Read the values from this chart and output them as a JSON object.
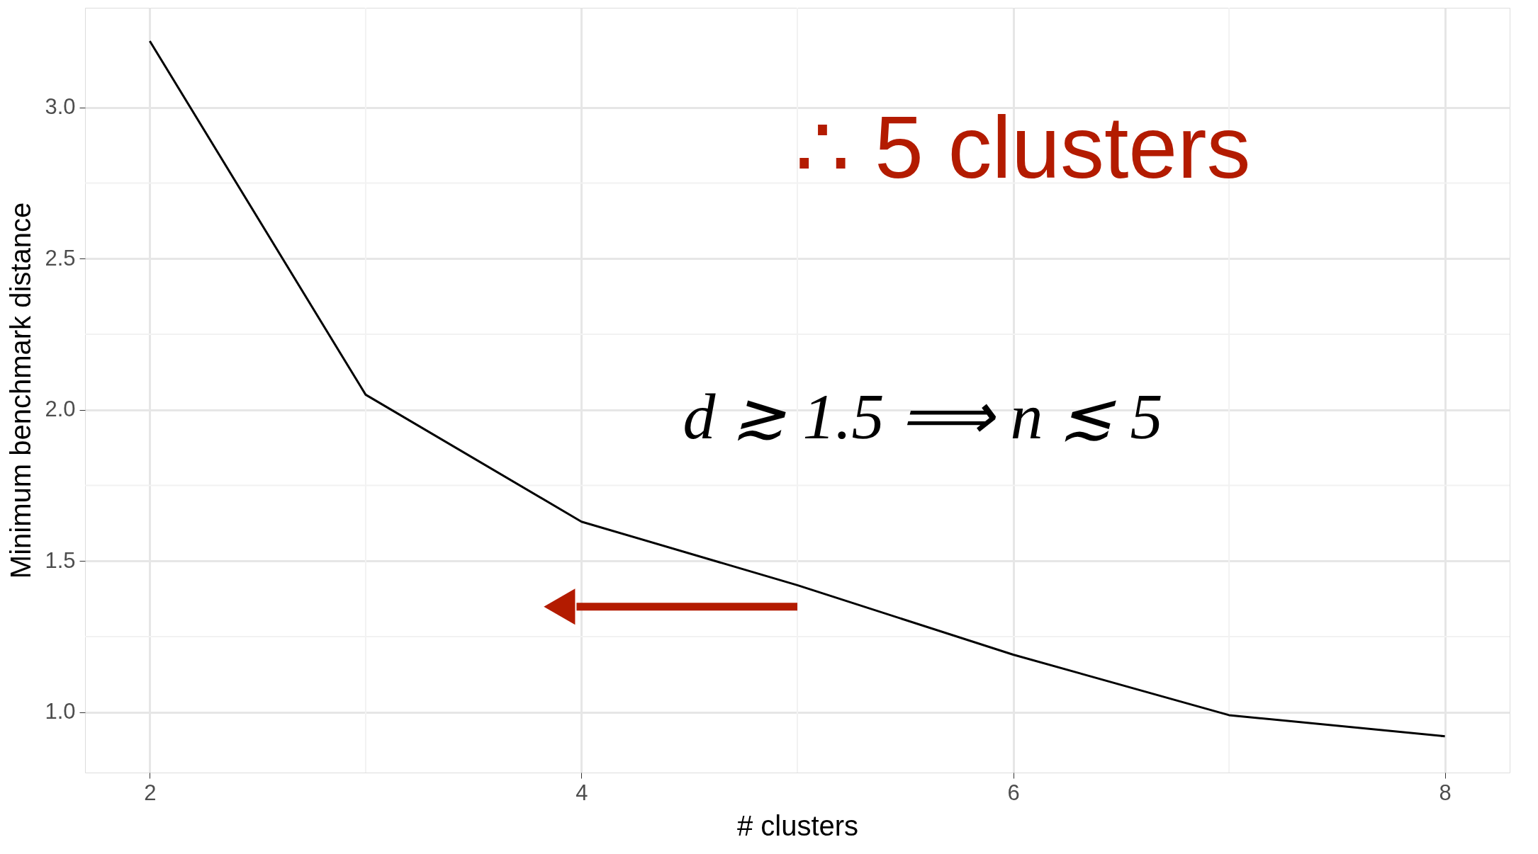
{
  "chart_data": {
    "type": "line",
    "xlabel": "# clusters",
    "ylabel": "Minimum benchmark distance",
    "series": [
      {
        "color": "#000000",
        "x": [
          2,
          3,
          4,
          5,
          6,
          7,
          8
        ],
        "values": [
          3.22,
          2.05,
          1.63,
          1.42,
          1.19,
          0.99,
          0.92
        ]
      }
    ],
    "xlim": [
      1.7,
      8.3
    ],
    "xticks": [
      2,
      4,
      6,
      8
    ],
    "ylim": [
      0.8,
      3.33
    ],
    "yticks": [
      {
        "value": 1,
        "label": "1.0"
      },
      1.5,
      {
        "value": 2,
        "label": "2.0"
      },
      2.5,
      {
        "value": 3,
        "label": "3.0"
      }
    ],
    "annotations": [
      "∴ 5 clusters",
      "d ≳ 1.5 ⟹ n ≲ 5"
    ],
    "grid": true,
    "line_style": "solid"
  }
}
